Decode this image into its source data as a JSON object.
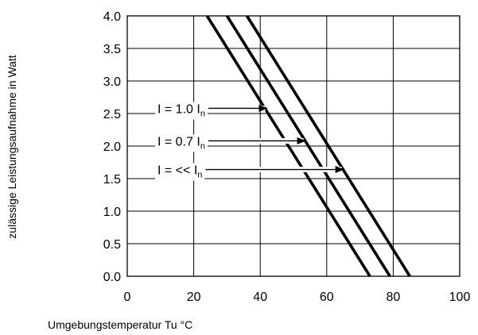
{
  "chart_data": {
    "type": "line",
    "xlabel": "Umgebungstemperatur Tu °C",
    "ylabel": "zulässige Leistungsaufnahme in Watt",
    "xlim": [
      0,
      100
    ],
    "ylim": [
      0,
      4
    ],
    "x_ticks": [
      0,
      20,
      40,
      60,
      80,
      100
    ],
    "y_ticks": [
      0.0,
      0.5,
      1.0,
      1.5,
      2.0,
      2.5,
      3.0,
      3.5,
      4.0
    ],
    "x_tick_labels": [
      "0",
      "20",
      "40",
      "60",
      "80",
      "100"
    ],
    "y_tick_labels": [
      "0.0",
      "0.5",
      "1.0",
      "1.5",
      "2.0",
      "2.5",
      "3.0",
      "3.5",
      "4.0"
    ],
    "grid": true,
    "series": [
      {
        "name": "I = 1.0 In",
        "x": [
          24,
          73
        ],
        "y": [
          4.0,
          0.0
        ]
      },
      {
        "name": "I = 0.7 In",
        "x": [
          30,
          79
        ],
        "y": [
          4.0,
          0.0
        ]
      },
      {
        "name": "I = << In",
        "x": [
          36,
          85
        ],
        "y": [
          4.0,
          0.0
        ]
      }
    ],
    "annotations": [
      {
        "main": "I = 1.0 I",
        "sub": "n",
        "arrow_to": [
          42,
          2.58
        ]
      },
      {
        "main": "I = 0.7 I",
        "sub": "n",
        "arrow_to": [
          53.5,
          2.08
        ]
      },
      {
        "main": "I = << I",
        "sub": "n",
        "arrow_to": [
          65,
          1.64
        ]
      }
    ]
  }
}
